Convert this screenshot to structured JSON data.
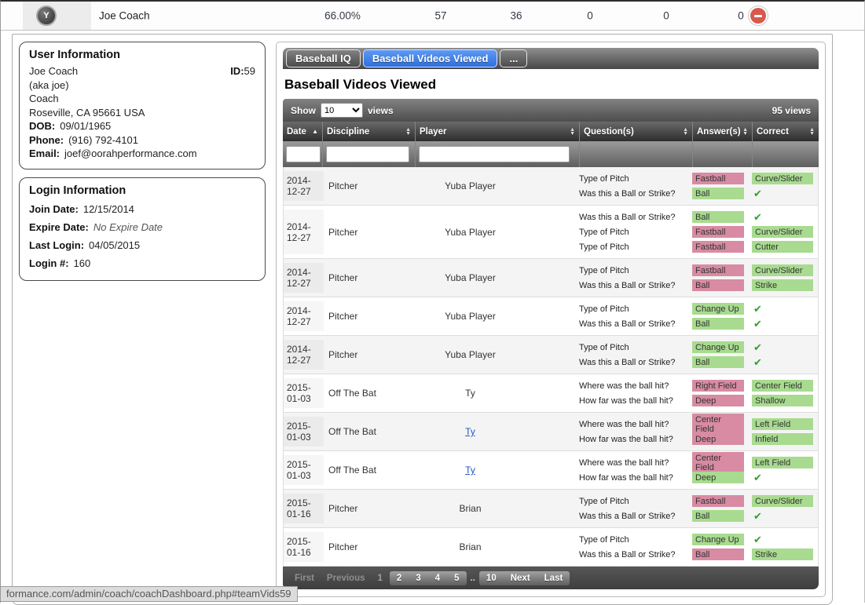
{
  "top_bar": {
    "avatar_letter": "Y",
    "name": "Joe Coach",
    "stats": [
      "66.00%",
      "57",
      "36",
      "0",
      "0",
      "0"
    ]
  },
  "status_bar": {
    "text": "formance.com/admin/coach/coachDashboard.php#teamVids59"
  },
  "user_info": {
    "title": "User Information",
    "name": "Joe Coach",
    "id_label": "ID:",
    "id_value": "59",
    "aka": "(aka joe)",
    "role": "Coach",
    "address": "Roseville, CA 95661 USA",
    "fields": [
      {
        "label": "DOB:",
        "value": "09/01/1965"
      },
      {
        "label": "Phone:",
        "value": "(916) 792-4101"
      },
      {
        "label": "Email:",
        "value": "joef@oorahperformance.com"
      }
    ]
  },
  "login_info": {
    "title": "Login Information",
    "fields": [
      {
        "label": "Join Date:",
        "value": "12/15/2014",
        "italic": false
      },
      {
        "label": "Expire Date:",
        "value": "No Expire Date",
        "italic": true
      },
      {
        "label": "Last Login:",
        "value": "04/05/2015",
        "italic": false
      },
      {
        "label": "Login #:",
        "value": "160",
        "italic": false
      }
    ]
  },
  "tabs": [
    {
      "label": "Baseball IQ",
      "active": false
    },
    {
      "label": "Baseball Videos Viewed",
      "active": true
    },
    {
      "label": "...",
      "active": false
    }
  ],
  "panel": {
    "heading": "Baseball Videos Viewed",
    "show_label": "Show",
    "page_size": "10",
    "show_suffix": "views",
    "total_label": "95 views"
  },
  "table": {
    "columns": [
      {
        "label": "Date",
        "sort": "asc",
        "filter": true
      },
      {
        "label": "Discipline",
        "sort": "both",
        "filter": true
      },
      {
        "label": "Player",
        "sort": "both",
        "filter": true
      },
      {
        "label": "Question(s)",
        "sort": "both",
        "filter": false
      },
      {
        "label": "Answer(s)",
        "sort": "both",
        "filter": false
      },
      {
        "label": "Correct",
        "sort": "both",
        "filter": false
      }
    ],
    "rows": [
      {
        "date": "2014-12-27",
        "discipline": "Pitcher",
        "player": "Yuba Player",
        "player_link": false,
        "questions": [
          "Type of Pitch",
          "Was this a Ball or Strike?"
        ],
        "answers": [
          {
            "text": "Fastball",
            "color": "pink"
          },
          {
            "text": "Ball",
            "color": "green"
          }
        ],
        "correct": [
          {
            "text": "Curve/Slider",
            "color": "green"
          },
          {
            "check": true
          }
        ]
      },
      {
        "date": "2014-12-27",
        "discipline": "Pitcher",
        "player": "Yuba Player",
        "player_link": false,
        "questions": [
          "Was this a Ball or Strike?",
          "Type of Pitch",
          "Type of Pitch"
        ],
        "answers": [
          {
            "text": "Ball",
            "color": "green"
          },
          {
            "text": "Fastball",
            "color": "pink"
          },
          {
            "text": "Fastball",
            "color": "pink"
          }
        ],
        "correct": [
          {
            "check": true
          },
          {
            "text": "Curve/Slider",
            "color": "green"
          },
          {
            "text": "Cutter",
            "color": "green"
          }
        ]
      },
      {
        "date": "2014-12-27",
        "discipline": "Pitcher",
        "player": "Yuba Player",
        "player_link": false,
        "questions": [
          "Type of Pitch",
          "Was this a Ball or Strike?"
        ],
        "answers": [
          {
            "text": "Fastball",
            "color": "pink"
          },
          {
            "text": "Ball",
            "color": "pink"
          }
        ],
        "correct": [
          {
            "text": "Curve/Slider",
            "color": "green"
          },
          {
            "text": "Strike",
            "color": "green"
          }
        ]
      },
      {
        "date": "2014-12-27",
        "discipline": "Pitcher",
        "player": "Yuba Player",
        "player_link": false,
        "questions": [
          "Type of Pitch",
          "Was this a Ball or Strike?"
        ],
        "answers": [
          {
            "text": "Change Up",
            "color": "green"
          },
          {
            "text": "Ball",
            "color": "green"
          }
        ],
        "correct": [
          {
            "check": true
          },
          {
            "check": true
          }
        ]
      },
      {
        "date": "2014-12-27",
        "discipline": "Pitcher",
        "player": "Yuba Player",
        "player_link": false,
        "questions": [
          "Type of Pitch",
          "Was this a Ball or Strike?"
        ],
        "answers": [
          {
            "text": "Change Up",
            "color": "green"
          },
          {
            "text": "Ball",
            "color": "green"
          }
        ],
        "correct": [
          {
            "check": true
          },
          {
            "check": true
          }
        ]
      },
      {
        "date": "2015-01-03",
        "discipline": "Off The Bat",
        "player": "Ty",
        "player_link": false,
        "questions": [
          "Where was the ball hit?",
          "How far was the ball hit?"
        ],
        "answers": [
          {
            "text": "Right Field",
            "color": "pink"
          },
          {
            "text": "Deep",
            "color": "pink"
          }
        ],
        "correct": [
          {
            "text": "Center Field",
            "color": "green"
          },
          {
            "text": "Shallow",
            "color": "green"
          }
        ]
      },
      {
        "date": "2015-01-03",
        "discipline": "Off The Bat",
        "player": "Ty",
        "player_link": true,
        "questions": [
          "Where was the ball hit?",
          "How far was the ball hit?"
        ],
        "answers": [
          {
            "text": "Center Field",
            "color": "pink"
          },
          {
            "text": "Deep",
            "color": "pink"
          }
        ],
        "correct": [
          {
            "text": "Left Field",
            "color": "green"
          },
          {
            "text": "Infield",
            "color": "green"
          }
        ]
      },
      {
        "date": "2015-01-03",
        "discipline": "Off The Bat",
        "player": "Ty",
        "player_link": true,
        "questions": [
          "Where was the ball hit?",
          "How far was the ball hit?"
        ],
        "answers": [
          {
            "text": "Center Field",
            "color": "pink"
          },
          {
            "text": "Deep",
            "color": "green"
          }
        ],
        "correct": [
          {
            "text": "Left Field",
            "color": "green"
          },
          {
            "check": true
          }
        ]
      },
      {
        "date": "2015-01-16",
        "discipline": "Pitcher",
        "player": "Brian",
        "player_link": false,
        "questions": [
          "Type of Pitch",
          "Was this a Ball or Strike?"
        ],
        "answers": [
          {
            "text": "Fastball",
            "color": "pink"
          },
          {
            "text": "Ball",
            "color": "green"
          }
        ],
        "correct": [
          {
            "text": "Curve/Slider",
            "color": "green"
          },
          {
            "check": true
          }
        ]
      },
      {
        "date": "2015-01-16",
        "discipline": "Pitcher",
        "player": "Brian",
        "player_link": false,
        "questions": [
          "Type of Pitch",
          "Was this a Ball or Strike?"
        ],
        "answers": [
          {
            "text": "Change Up",
            "color": "green"
          },
          {
            "text": "Ball",
            "color": "pink"
          }
        ],
        "correct": [
          {
            "check": true
          },
          {
            "text": "Strike",
            "color": "green"
          }
        ]
      }
    ]
  },
  "colors": {
    "badge_pink": "#d88ba3",
    "badge_green": "#a8db8f",
    "check_green": "#2ea12e",
    "active_tab_blue": "#2e6fdd",
    "remove_icon_red": "#d9584e"
  },
  "pagination": {
    "items": [
      {
        "label": "First",
        "state": "disabled"
      },
      {
        "label": "Previous",
        "state": "disabled"
      },
      {
        "label": "1",
        "state": "current"
      },
      {
        "label": "2",
        "state": "page"
      },
      {
        "label": "3",
        "state": "page"
      },
      {
        "label": "4",
        "state": "page"
      },
      {
        "label": "5",
        "state": "page"
      },
      {
        "label": "..",
        "state": "ellipsis"
      },
      {
        "label": "10",
        "state": "page"
      },
      {
        "label": "Next",
        "state": "page"
      },
      {
        "label": "Last",
        "state": "page"
      }
    ]
  }
}
